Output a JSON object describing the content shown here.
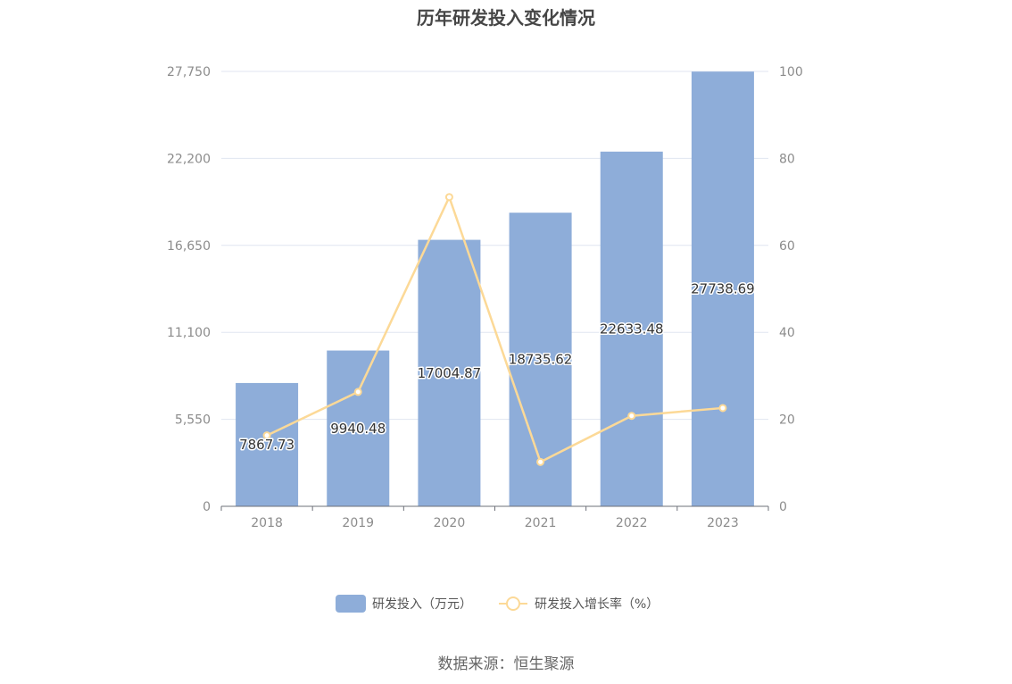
{
  "chart_data": {
    "type": "bar",
    "title": "历年研发投入变化情况",
    "categories": [
      "2018",
      "2019",
      "2020",
      "2021",
      "2022",
      "2023"
    ],
    "series": [
      {
        "name": "研发投入（万元）",
        "type": "bar",
        "axis": "left",
        "color": "#8eadd9",
        "values": [
          7867.73,
          9940.48,
          17004.87,
          18735.62,
          22633.48,
          27738.69
        ],
        "labels": [
          "7867.73",
          "9940.48",
          "17004.87",
          "18735.62",
          "22633.48",
          "27738.69"
        ]
      },
      {
        "name": "研发投入增长率（%）",
        "type": "line",
        "axis": "right",
        "color": "#fcd997",
        "values": [
          16.3,
          26.3,
          71.1,
          10.2,
          20.8,
          22.6
        ]
      }
    ],
    "y_left": {
      "ylim": [
        0,
        27750
      ],
      "ticks": [
        "0",
        "5,550",
        "11,100",
        "16,650",
        "22,200",
        "27,750"
      ]
    },
    "y_right": {
      "ylim": [
        0,
        100
      ],
      "ticks": [
        "0",
        "20",
        "40",
        "60",
        "80",
        "100"
      ]
    },
    "grid": true,
    "legend_position": "bottom"
  },
  "source": "数据来源：恒生聚源"
}
